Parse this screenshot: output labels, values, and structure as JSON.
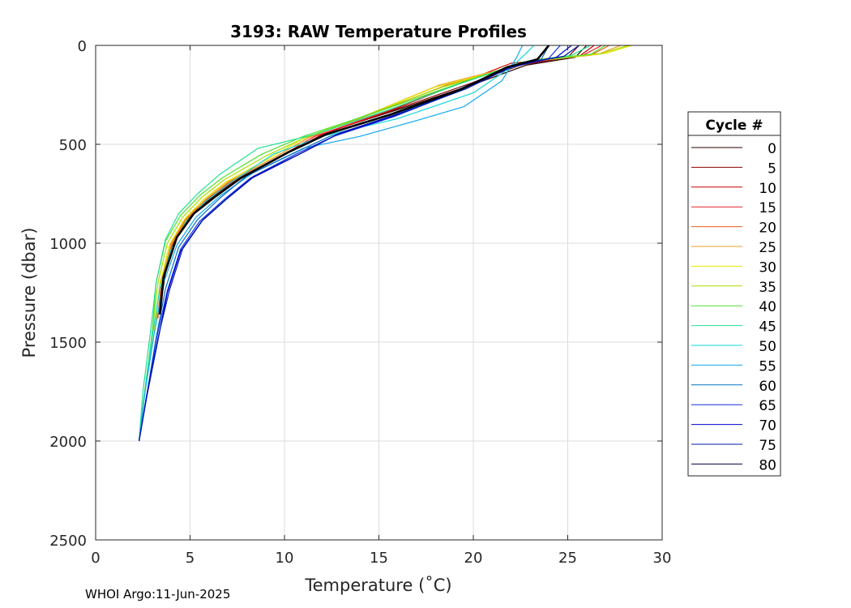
{
  "chart_data": {
    "type": "line",
    "title": "3193: RAW Temperature Profiles",
    "xlabel": "Temperature (˚C)",
    "ylabel": "Pressure (dbar)",
    "xlim": [
      0,
      30
    ],
    "ylim": [
      0,
      2500
    ],
    "y_reversed": true,
    "grid": true,
    "x_ticks": [
      "0",
      "5",
      "10",
      "15",
      "20",
      "25",
      "30"
    ],
    "y_ticks": [
      "0",
      "500",
      "1000",
      "1500",
      "2000",
      "2500"
    ],
    "legend": {
      "title": "Cycle #",
      "placement": "right",
      "entries": [
        {
          "label": "0",
          "color": "#2b0000"
        },
        {
          "label": "5",
          "color": "#8b0000"
        },
        {
          "label": "10",
          "color": "#cc0000"
        },
        {
          "label": "15",
          "color": "#e8202a"
        },
        {
          "label": "20",
          "color": "#e8601a"
        },
        {
          "label": "25",
          "color": "#f0a020"
        },
        {
          "label": "30",
          "color": "#e6e600"
        },
        {
          "label": "35",
          "color": "#a8e000"
        },
        {
          "label": "40",
          "color": "#50e030"
        },
        {
          "label": "45",
          "color": "#20e090"
        },
        {
          "label": "50",
          "color": "#10d8d8"
        },
        {
          "label": "55",
          "color": "#10a8f0"
        },
        {
          "label": "60",
          "color": "#0070c0"
        },
        {
          "label": "65",
          "color": "#1030e0"
        },
        {
          "label": "70",
          "color": "#0000d0"
        },
        {
          "label": "75",
          "color": "#0018a8"
        },
        {
          "label": "80",
          "color": "#000050"
        }
      ]
    },
    "series": [
      {
        "color": "#2b0000",
        "temp": [
          26.0,
          25.4,
          22.8,
          20.5,
          16.5,
          12.5,
          10.4,
          7.5,
          6.3,
          5.2,
          4.3,
          3.7,
          3.4
        ],
        "pres": [
          0,
          60,
          100,
          180,
          310,
          430,
          530,
          680,
          760,
          840,
          960,
          1150,
          1340
        ]
      },
      {
        "color": "#8b0000",
        "temp": [
          25.6,
          25.0,
          22.5,
          19.9,
          16.0,
          12.2,
          10.2,
          7.4,
          6.2,
          5.0,
          4.2,
          3.6,
          3.4
        ],
        "pres": [
          0,
          60,
          100,
          190,
          320,
          440,
          540,
          680,
          760,
          850,
          970,
          1160,
          1350
        ]
      },
      {
        "color": "#cc0000",
        "temp": [
          26.4,
          25.6,
          22.0,
          19.3,
          15.6,
          12.0,
          10.0,
          7.3,
          6.1,
          5.0,
          4.2,
          3.6,
          3.3
        ],
        "pres": [
          0,
          55,
          90,
          190,
          330,
          450,
          550,
          690,
          770,
          860,
          980,
          1170,
          1360
        ]
      },
      {
        "color": "#e8202a",
        "temp": [
          26.8,
          25.8,
          22.6,
          19.0,
          15.2,
          11.6,
          9.8,
          7.2,
          6.0,
          4.9,
          4.1,
          3.5,
          3.3
        ],
        "pres": [
          0,
          50,
          90,
          200,
          340,
          460,
          560,
          690,
          770,
          860,
          990,
          1180,
          1370
        ]
      },
      {
        "color": "#e8601a",
        "temp": [
          27.2,
          26.2,
          23.0,
          18.6,
          14.8,
          11.4,
          9.6,
          7.1,
          5.9,
          4.8,
          4.0,
          3.5,
          3.3
        ],
        "pres": [
          0,
          50,
          80,
          200,
          340,
          460,
          560,
          690,
          780,
          870,
          1000,
          1190,
          1380
        ]
      },
      {
        "color": "#f0a020",
        "temp": [
          27.8,
          26.6,
          23.2,
          18.2,
          14.4,
          11.2,
          9.4,
          7.0,
          5.8,
          4.8,
          4.0,
          3.4,
          3.2
        ],
        "pres": [
          0,
          45,
          80,
          200,
          350,
          470,
          570,
          690,
          780,
          880,
          1010,
          1200,
          1400
        ]
      },
      {
        "color": "#e6e600",
        "temp": [
          28.4,
          27.0,
          23.6,
          18.0,
          14.2,
          11.0,
          9.2,
          6.9,
          5.7,
          4.7,
          3.9,
          3.4,
          3.1,
          2.6,
          2.3
        ],
        "pres": [
          0,
          40,
          75,
          210,
          360,
          470,
          570,
          690,
          780,
          880,
          1010,
          1210,
          1450,
          1750,
          2000
        ]
      },
      {
        "color": "#a8e000",
        "temp": [
          28.2,
          26.8,
          23.4,
          18.4,
          14.4,
          11.0,
          9.0,
          6.8,
          5.6,
          4.6,
          3.8,
          3.3,
          3.0,
          2.6,
          2.3
        ],
        "pres": [
          0,
          40,
          70,
          210,
          350,
          470,
          560,
          680,
          770,
          870,
          1000,
          1200,
          1450,
          1750,
          2000
        ]
      },
      {
        "color": "#50e030",
        "temp": [
          27.0,
          26.2,
          23.0,
          19.0,
          14.8,
          11.0,
          8.8,
          6.7,
          5.5,
          4.5,
          3.7,
          3.2,
          3.0,
          2.6,
          2.3
        ],
        "pres": [
          0,
          45,
          80,
          200,
          340,
          460,
          550,
          670,
          760,
          860,
          990,
          1200,
          1450,
          1750,
          2000
        ]
      },
      {
        "color": "#20e090",
        "temp": [
          26.2,
          25.2,
          22.6,
          19.4,
          15.4,
          11.6,
          8.6,
          6.6,
          5.4,
          4.4,
          3.7,
          3.2,
          2.9,
          2.5,
          2.3
        ],
        "pres": [
          0,
          50,
          85,
          190,
          330,
          450,
          520,
          650,
          750,
          850,
          980,
          1200,
          1450,
          1750,
          2000
        ]
      },
      {
        "color": "#10d8d8",
        "temp": [
          23.2,
          22.8,
          22.0,
          20.0,
          16.0,
          12.0,
          9.4,
          7.2,
          5.8,
          4.8,
          4.0,
          3.4,
          3.0,
          2.6,
          2.3
        ],
        "pres": [
          0,
          40,
          110,
          240,
          370,
          460,
          550,
          690,
          790,
          890,
          1030,
          1230,
          1470,
          1760,
          2000
        ]
      },
      {
        "color": "#10a8f0",
        "temp": [
          22.6,
          22.3,
          21.5,
          19.5,
          17.0,
          14.0,
          11.0,
          8.4,
          6.6,
          5.3,
          4.3,
          3.6,
          3.1,
          2.6,
          2.3
        ],
        "pres": [
          0,
          60,
          180,
          310,
          380,
          460,
          520,
          640,
          760,
          870,
          1010,
          1200,
          1460,
          1760,
          2000
        ]
      },
      {
        "color": "#0070c0",
        "temp": [
          24.0,
          23.6,
          21.4,
          18.8,
          15.6,
          12.4,
          10.6,
          8.0,
          6.6,
          5.4,
          4.4,
          3.7,
          3.2,
          2.7,
          2.3
        ],
        "pres": [
          0,
          70,
          130,
          240,
          360,
          460,
          540,
          660,
          770,
          880,
          1020,
          1230,
          1480,
          1770,
          2000
        ]
      },
      {
        "color": "#1030e0",
        "temp": [
          24.6,
          24.0,
          21.6,
          19.0,
          15.8,
          12.6,
          10.6,
          8.2,
          6.8,
          5.5,
          4.5,
          3.8,
          3.2,
          2.7,
          2.3
        ],
        "pres": [
          0,
          65,
          120,
          240,
          360,
          460,
          550,
          670,
          780,
          890,
          1030,
          1240,
          1490,
          1780,
          2000
        ]
      },
      {
        "color": "#0000d0",
        "temp": [
          25.2,
          24.4,
          22.0,
          19.2,
          16.0,
          12.8,
          10.8,
          8.3,
          6.9,
          5.6,
          4.5,
          3.8,
          3.3,
          2.7,
          2.3
        ],
        "pres": [
          0,
          60,
          110,
          230,
          350,
          450,
          550,
          670,
          780,
          890,
          1040,
          1250,
          1490,
          1780,
          2000
        ]
      },
      {
        "color": "#0018a8",
        "temp": [
          25.6,
          24.8,
          22.2,
          19.6,
          16.2,
          13.0,
          11.0,
          8.4,
          7.0,
          5.7,
          4.6,
          3.9,
          3.3,
          2.7,
          2.3
        ],
        "pres": [
          0,
          55,
          100,
          220,
          340,
          440,
          540,
          660,
          770,
          880,
          1030,
          1240,
          1480,
          1770,
          2000
        ]
      },
      {
        "color": "#000050",
        "temp": [
          24.0,
          23.4,
          21.8,
          19.4,
          15.6,
          12.2,
          10.2,
          7.7,
          6.4,
          5.2,
          4.3,
          3.6,
          3.4
        ],
        "pres": [
          0,
          70,
          110,
          220,
          350,
          450,
          540,
          670,
          760,
          850,
          970,
          1170,
          1360
        ]
      }
    ]
  },
  "footer": "WHOI Argo:11-Jun-2025"
}
